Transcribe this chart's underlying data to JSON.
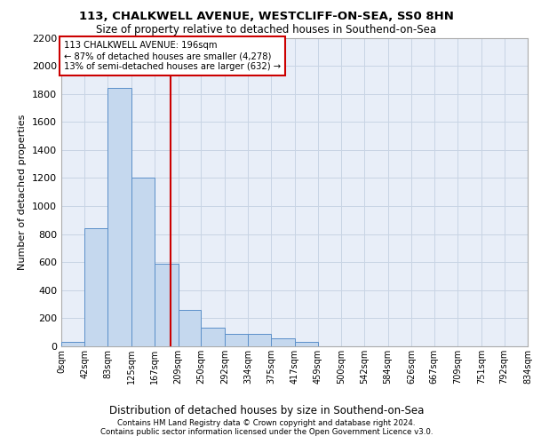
{
  "title_line1": "113, CHALKWELL AVENUE, WESTCLIFF-ON-SEA, SS0 8HN",
  "title_line2": "Size of property relative to detached houses in Southend-on-Sea",
  "xlabel": "Distribution of detached houses by size in Southend-on-Sea",
  "ylabel": "Number of detached properties",
  "footer_line1": "Contains HM Land Registry data © Crown copyright and database right 2024.",
  "footer_line2": "Contains public sector information licensed under the Open Government Licence v3.0.",
  "bin_edges": [
    0,
    42,
    83,
    125,
    167,
    209,
    250,
    292,
    334,
    375,
    417,
    459,
    500,
    542,
    584,
    626,
    667,
    709,
    751,
    792,
    834
  ],
  "bin_counts": [
    30,
    840,
    1840,
    1200,
    590,
    260,
    130,
    90,
    90,
    60,
    30,
    0,
    0,
    0,
    0,
    0,
    0,
    0,
    0,
    0
  ],
  "property_size": 196,
  "annotation_title": "113 CHALKWELL AVENUE: 196sqm",
  "annotation_line1": "← 87% of detached houses are smaller (4,278)",
  "annotation_line2": "13% of semi-detached houses are larger (632) →",
  "bar_color": "#c5d8ee",
  "bar_edge_color": "#5b8fc9",
  "line_color": "#cc0000",
  "annotation_box_color": "#cc0000",
  "grid_color": "#c8d4e4",
  "bg_color": "#e8eef8",
  "ylim": [
    0,
    2200
  ],
  "yticks": [
    0,
    200,
    400,
    600,
    800,
    1000,
    1200,
    1400,
    1600,
    1800,
    2000,
    2200
  ]
}
